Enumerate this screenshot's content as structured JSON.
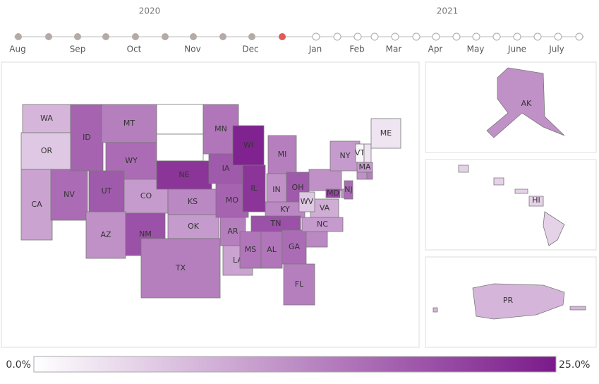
{
  "timeline": {
    "years": [
      "2020",
      "2021"
    ],
    "months": [
      "Aug",
      "Sep",
      "Oct",
      "Nov",
      "Dec",
      "Jan",
      "Feb",
      "Mar",
      "Apr",
      "May",
      "June",
      "July"
    ]
  },
  "map": {
    "states": [
      {
        "label": "WA",
        "value": 8
      },
      {
        "label": "OR",
        "value": 6
      },
      {
        "label": "CA",
        "value": 10
      },
      {
        "label": "NV",
        "value": 16
      },
      {
        "label": "ID",
        "value": 17
      },
      {
        "label": "MT",
        "value": 14
      },
      {
        "label": "WY",
        "value": 16
      },
      {
        "label": "UT",
        "value": 18
      },
      {
        "label": "CO",
        "value": 11
      },
      {
        "label": "AZ",
        "value": 12
      },
      {
        "label": "NM",
        "value": 19
      },
      {
        "label": null,
        "value": 0
      },
      {
        "label": null,
        "value": 0
      },
      {
        "label": "NE",
        "value": 22
      },
      {
        "label": "KS",
        "value": 13
      },
      {
        "label": "OK",
        "value": 11
      },
      {
        "label": "TX",
        "value": 14
      },
      {
        "label": "MN",
        "value": 15
      },
      {
        "label": "IA",
        "value": 18
      },
      {
        "label": "MO",
        "value": 17
      },
      {
        "label": "AR",
        "value": 14
      },
      {
        "label": "LA",
        "value": 10
      },
      {
        "label": "WI",
        "value": 24
      },
      {
        "label": "IL",
        "value": 22
      },
      {
        "label": "MI",
        "value": 14
      },
      {
        "label": "IN",
        "value": 12
      },
      {
        "label": "OH",
        "value": 18
      },
      {
        "label": "KY",
        "value": 13
      },
      {
        "label": "TN",
        "value": 19
      },
      {
        "label": "MS",
        "value": 15
      },
      {
        "label": "AL",
        "value": 15
      },
      {
        "label": "GA",
        "value": 16
      },
      {
        "label": "FL",
        "value": 14
      },
      {
        "label": null,
        "value": 13
      },
      {
        "label": "NC",
        "value": 11
      },
      {
        "label": "VA",
        "value": 9
      },
      {
        "label": "WV",
        "value": 6
      },
      {
        "label": null,
        "value": 12
      },
      {
        "label": "MD",
        "value": 20
      },
      {
        "label": null,
        "value": 12
      },
      {
        "label": "NJ",
        "value": 16
      },
      {
        "label": "NY",
        "value": 11
      },
      {
        "label": "VT",
        "value": 1
      },
      {
        "label": null,
        "value": 3
      },
      {
        "label": "ME",
        "value": 3
      },
      {
        "label": "MA",
        "value": 11
      },
      {
        "label": null,
        "value": 12
      },
      {
        "label": null,
        "value": 14
      },
      {
        "label": "AK",
        "value": 12
      },
      {
        "label": "HI",
        "value": 5
      },
      {
        "label": "PR",
        "value": 8
      }
    ]
  },
  "legend": {
    "min": {
      "value": 0,
      "label": "0.0%"
    },
    "max": {
      "value": 25,
      "label": "25.0%"
    }
  }
}
